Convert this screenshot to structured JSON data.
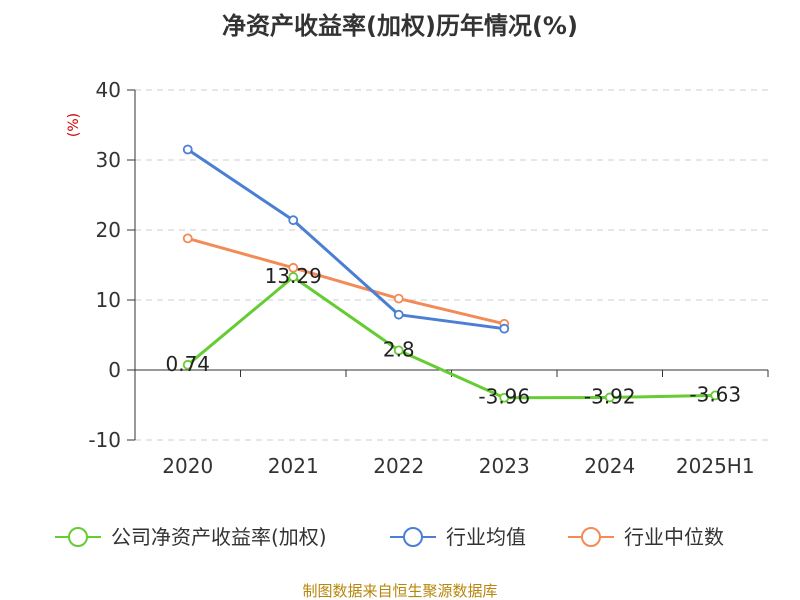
{
  "chart_data": {
    "type": "line",
    "title": "净资产收益率(加权)历年情况(%)",
    "ylabel": "(%)",
    "ylim": [
      -10,
      40
    ],
    "yticks": [
      -10,
      0,
      10,
      20,
      30,
      40
    ],
    "grid": true,
    "legend_position": "bottom",
    "categories": [
      "2020",
      "2021",
      "2022",
      "2023",
      "2024",
      "2025H1"
    ],
    "series": [
      {
        "name": "公司净资产收益率(加权)",
        "color": "#66cc33",
        "values": [
          0.74,
          13.29,
          2.8,
          -3.96,
          -3.92,
          -3.63
        ],
        "labels": [
          "0.74",
          "13.29",
          "2.8",
          "-3.96",
          "-3.92",
          "-3.63"
        ]
      },
      {
        "name": "行业均值",
        "color": "#4a7fd4",
        "values": [
          31.5,
          21.4,
          7.9,
          5.9,
          null,
          null
        ]
      },
      {
        "name": "行业中位数",
        "color": "#f28b57",
        "values": [
          18.8,
          14.6,
          10.2,
          6.6,
          null,
          null
        ]
      }
    ]
  },
  "footer": {
    "source": "制图数据来自恒生聚源数据库"
  }
}
